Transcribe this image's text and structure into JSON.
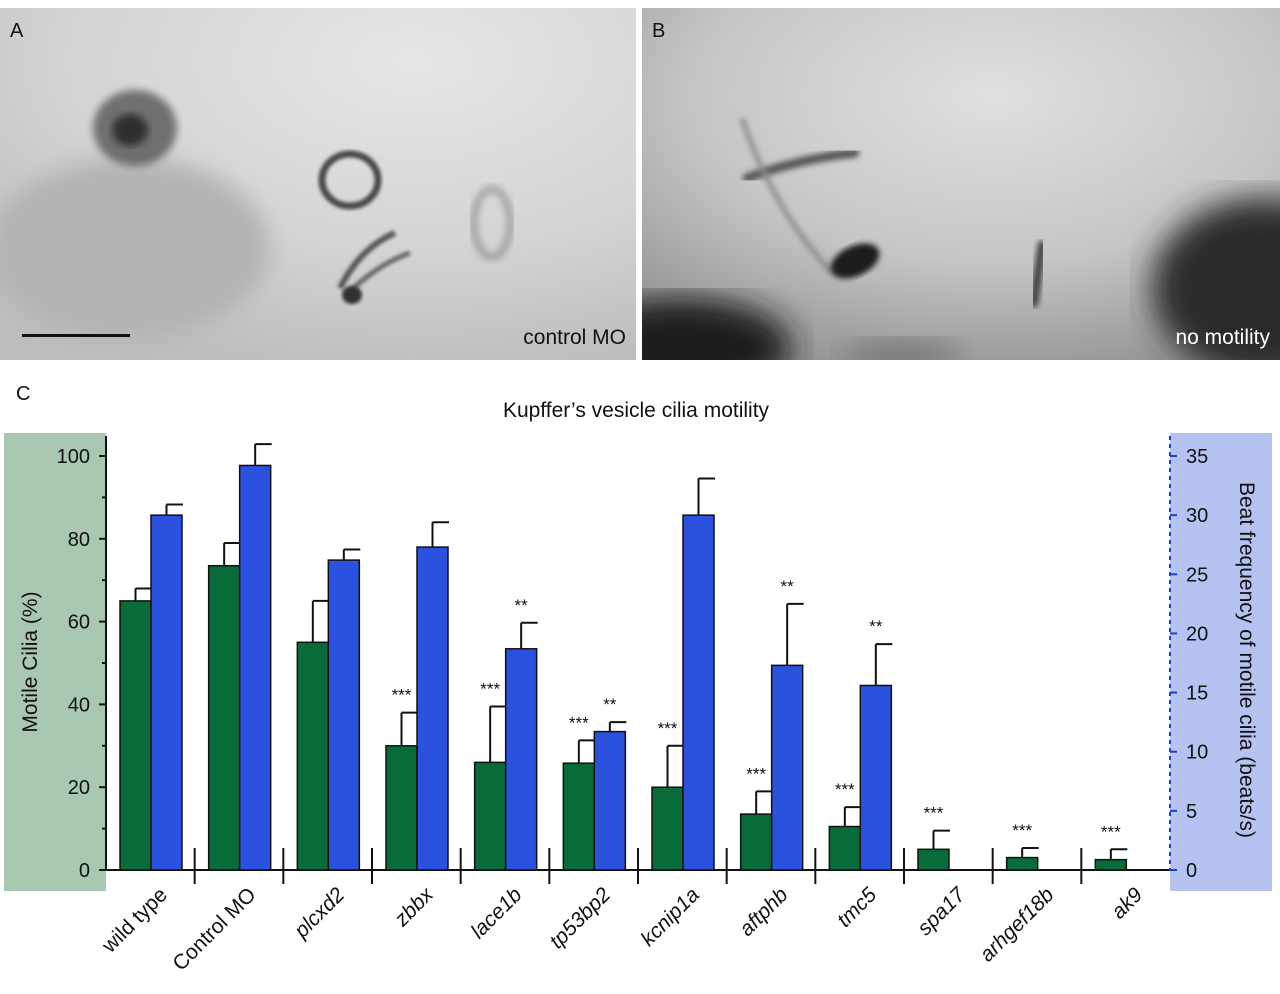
{
  "panels": {
    "a": {
      "letter": "A",
      "caption": "control MO"
    },
    "b": {
      "letter": "B",
      "caption": "no motility"
    },
    "c": {
      "letter": "C"
    }
  },
  "colors": {
    "motile_bar": "#076b3a",
    "beat_bar": "#2b52df",
    "left_axis_bg": "#a8c8b2",
    "right_axis_bg": "#b6c3f1"
  },
  "chart_data": {
    "type": "bar",
    "title": "Kupffer’s vesicle cilia motility",
    "ylabel": "Motile Cilia  (%)",
    "y2label": "Beat frequency of motile cilia (beats/s)",
    "ylim": [
      0,
      100
    ],
    "y2lim": [
      0,
      35
    ],
    "yticks": [
      "0",
      "20",
      "40",
      "60",
      "80",
      "100"
    ],
    "y2ticks": [
      "0",
      "5",
      "10",
      "15",
      "20",
      "25",
      "30",
      "35"
    ],
    "categories": [
      "wild type",
      "Control MO",
      "plcxd2",
      "zbbx",
      "lace1b",
      "tp53bp2",
      "kcnip1a",
      "aftphb",
      "tmc5",
      "spa17",
      "arhgef18b",
      "ak9"
    ],
    "italic": [
      false,
      false,
      true,
      true,
      true,
      true,
      true,
      true,
      true,
      true,
      true,
      true
    ],
    "series": [
      {
        "name": "Motile Cilia (%)",
        "axis": "left",
        "values": [
          65,
          73.5,
          55,
          30,
          26,
          25.8,
          20,
          13.5,
          10.5,
          5,
          3,
          2.5
        ],
        "errors": [
          3,
          5.5,
          10,
          8,
          13.5,
          5.5,
          10,
          5.5,
          4.7,
          4.5,
          2.3,
          2.5
        ],
        "significance": [
          "",
          "",
          "",
          "***",
          "***",
          "***",
          "***",
          "***",
          "***",
          "***",
          "***",
          "***"
        ]
      },
      {
        "name": "Beat frequency (beats/s)",
        "axis": "right",
        "values": [
          30,
          34.2,
          26.2,
          27.3,
          18.7,
          11.7,
          30,
          17.3,
          15.6,
          null,
          null,
          null
        ],
        "errors": [
          0.9,
          1.8,
          0.9,
          2.1,
          2.2,
          0.8,
          3.1,
          5.2,
          3.5,
          null,
          null,
          null
        ],
        "significance": [
          "",
          "",
          "",
          "",
          "**",
          "**",
          "",
          "**",
          "**",
          "",
          "",
          ""
        ]
      }
    ]
  }
}
